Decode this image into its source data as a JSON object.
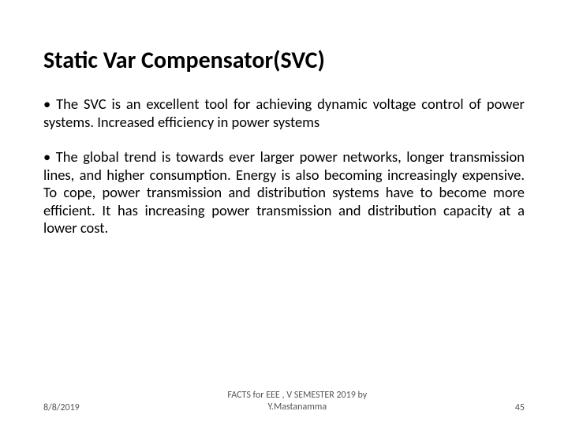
{
  "slide": {
    "title": "Static Var Compensator(SVC)",
    "paragraphs": [
      "• The SVC is an excellent tool for achieving dynamic voltage control of power systems. Increased efficiency in power systems",
      "• The global trend is towards ever larger power networks, longer transmission lines, and higher consumption. Energy is also becoming increasingly expensive. To cope, power transmission and distribution systems have to become more efficient. It has increasing power transmission and distribution capacity at a lower cost."
    ],
    "footer": {
      "date": "8/8/2019",
      "center_line1": "FACTS for EEE , V SEMESTER 2019 by",
      "center_line2": "Y.Mastanamma",
      "page": "45"
    }
  },
  "style": {
    "background_color": "#ffffff",
    "title_color": "#000000",
    "title_fontsize_pt": 30,
    "title_fontweight": 700,
    "body_color": "#000000",
    "body_fontsize_pt": 18.5,
    "body_align": "justify",
    "footer_color": "#555555",
    "footer_fontsize_pt": 12,
    "font_family": "Calibri"
  }
}
